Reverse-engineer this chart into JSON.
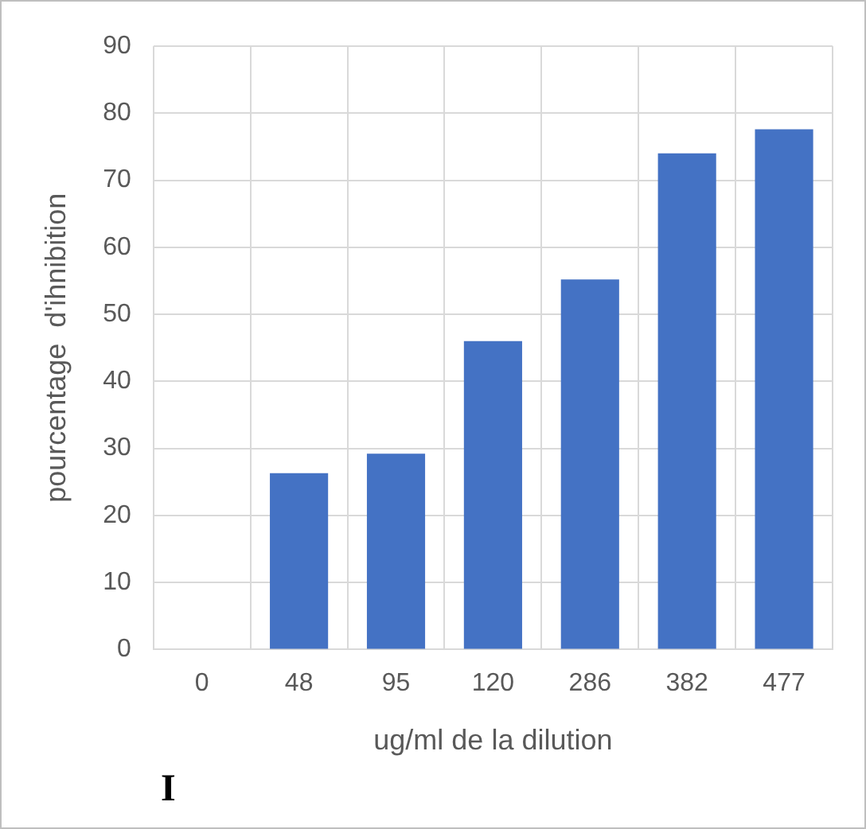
{
  "chart_data": {
    "type": "bar",
    "categories": [
      "0",
      "48",
      "95",
      "120",
      "286",
      "382",
      "477"
    ],
    "values": [
      0,
      26.3,
      29.2,
      46,
      55.2,
      74,
      77.6
    ],
    "color": "#4472c4",
    "ylim": [
      0,
      90
    ],
    "yticks": [
      0,
      10,
      20,
      30,
      40,
      50,
      60,
      70,
      80,
      90
    ],
    "grid": true,
    "xlabel": "ug/ml de la dilution",
    "ylabel": "pourcentage  d'ihnibition",
    "annotations": [
      "I"
    ]
  }
}
